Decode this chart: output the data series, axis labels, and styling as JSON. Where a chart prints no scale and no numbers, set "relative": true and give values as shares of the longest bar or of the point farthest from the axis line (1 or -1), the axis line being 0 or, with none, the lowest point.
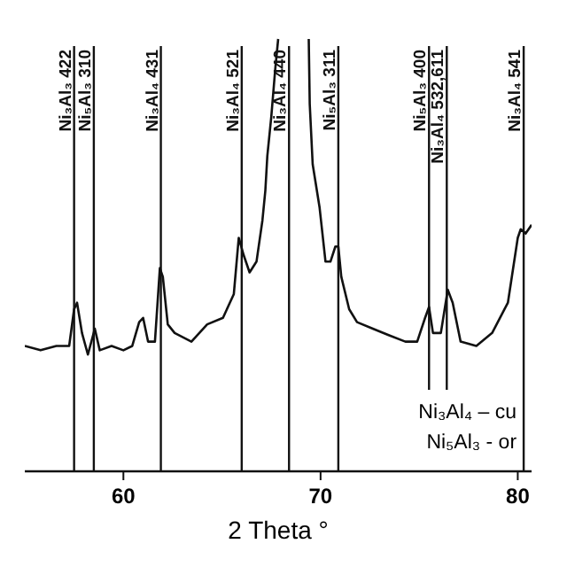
{
  "chart_data": {
    "type": "line",
    "relative": true,
    "xlabel": "2 Theta °",
    "xlim": [
      55,
      80.7
    ],
    "xticks": [
      60,
      70,
      80
    ],
    "grid": false,
    "marker": "none",
    "line_style": "solid",
    "series": [
      {
        "color": "#111111",
        "x": [
          55.0,
          55.8,
          56.6,
          57.25,
          57.5,
          57.65,
          57.9,
          58.2,
          58.55,
          58.8,
          59.4,
          60.0,
          60.45,
          60.8,
          61.0,
          61.25,
          61.6,
          61.85,
          62.0,
          62.25,
          62.6,
          63.45,
          64.25,
          65.05,
          65.6,
          65.85,
          66.1,
          66.4,
          66.75,
          67.05,
          67.2,
          67.3,
          67.5,
          67.7,
          67.85,
          68.6,
          69.4,
          69.45,
          69.6,
          69.95,
          70.25,
          70.5,
          70.75,
          70.9,
          71.05,
          71.45,
          71.85,
          72.65,
          73.45,
          74.3,
          74.9,
          75.3,
          75.5,
          75.7,
          76.1,
          76.45,
          76.7,
          77.1,
          77.9,
          78.7,
          79.5,
          80.0,
          80.15,
          80.4,
          80.7
        ],
        "values": [
          0.29,
          0.28,
          0.29,
          0.29,
          0.375,
          0.39,
          0.32,
          0.27,
          0.33,
          0.28,
          0.29,
          0.28,
          0.29,
          0.345,
          0.355,
          0.3,
          0.3,
          0.47,
          0.45,
          0.34,
          0.32,
          0.3,
          0.34,
          0.355,
          0.41,
          0.54,
          0.5,
          0.46,
          0.485,
          0.58,
          0.65,
          0.73,
          0.82,
          0.93,
          1,
          null,
          1,
          0.85,
          0.71,
          0.61,
          0.485,
          0.485,
          0.52,
          0.52,
          0.45,
          0.375,
          0.345,
          0.33,
          0.315,
          0.3,
          0.3,
          0.355,
          0.38,
          0.32,
          0.32,
          0.42,
          0.39,
          0.3,
          0.29,
          0.32,
          0.39,
          0.54,
          0.56,
          0.55,
          0.57
        ]
      }
    ],
    "ref_lines": [
      {
        "axis": "x",
        "value": 57.5,
        "label": "Ni₃Al₃  422"
      },
      {
        "axis": "x",
        "value": 58.5,
        "label": "Ni₅Al₃  310"
      },
      {
        "axis": "x",
        "value": 61.9,
        "label": "Ni₃Al₄  431"
      },
      {
        "axis": "x",
        "value": 66.0,
        "label": "Ni₃Al₄  521"
      },
      {
        "axis": "x",
        "value": 68.4,
        "label": "Ni₃Al₄  440"
      },
      {
        "axis": "x",
        "value": 70.9,
        "label": "Ni₅Al₃  311"
      },
      {
        "axis": "x",
        "value": 75.5,
        "label": "Ni₅Al₃  400"
      },
      {
        "axis": "x",
        "value": 76.4,
        "label": "Ni₃Al₄  532,611"
      },
      {
        "axis": "x",
        "value": 80.3,
        "label": "Ni₃Al₄  541"
      }
    ],
    "annotations": [
      "Ni₃Al₄ – cu",
      "Ni₅Al₃ - or"
    ]
  }
}
